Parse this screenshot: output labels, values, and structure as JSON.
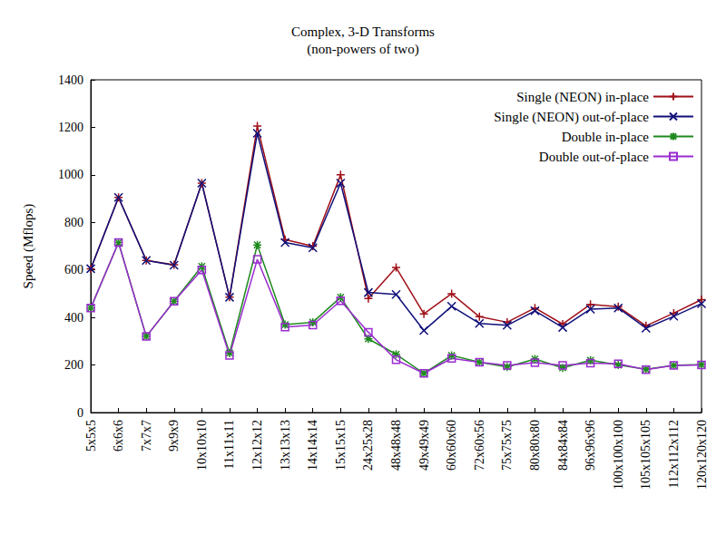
{
  "chart_data": {
    "type": "line",
    "title": "Complex, 3-D Transforms",
    "subtitle": "(non-powers of two)",
    "y_label": "Speed (Mflops)",
    "categories": [
      "5x5x5",
      "6x6x6",
      "7x7x7",
      "9x9x9",
      "10x10x10",
      "11x11x11",
      "12x12x12",
      "13x13x13",
      "14x14x14",
      "15x15x15",
      "24x25x28",
      "48x48x48",
      "49x49x49",
      "60x60x60",
      "72x60x56",
      "75x75x75",
      "80x80x80",
      "84x84x84",
      "96x96x96",
      "100x100x100",
      "105x105x105",
      "112x112x112",
      "120x120x120"
    ],
    "series": [
      {
        "name": "Single (NEON) in-place",
        "color": "#a01018",
        "marker": "plus",
        "values": [
          605,
          905,
          640,
          622,
          965,
          485,
          1205,
          728,
          700,
          1000,
          480,
          610,
          415,
          500,
          403,
          380,
          440,
          372,
          455,
          445,
          365,
          418,
          475
        ]
      },
      {
        "name": "Single (NEON) out-of-place",
        "color": "#10107a",
        "marker": "cross",
        "values": [
          605,
          905,
          640,
          620,
          965,
          485,
          1175,
          715,
          693,
          965,
          505,
          497,
          345,
          447,
          375,
          367,
          428,
          358,
          435,
          440,
          355,
          405,
          458
        ]
      },
      {
        "name": "Double in-place",
        "color": "#1e8a1e",
        "marker": "star",
        "values": [
          440,
          715,
          320,
          468,
          615,
          250,
          705,
          370,
          380,
          485,
          310,
          245,
          165,
          240,
          212,
          192,
          225,
          188,
          220,
          200,
          182,
          198,
          202
        ]
      },
      {
        "name": "Double out-of-place",
        "color": "#9a2cd0",
        "marker": "square",
        "values": [
          440,
          715,
          320,
          468,
          600,
          240,
          645,
          360,
          368,
          470,
          338,
          222,
          165,
          228,
          212,
          198,
          210,
          198,
          208,
          205,
          180,
          198,
          200
        ]
      }
    ],
    "ylim": [
      0,
      1400
    ],
    "yticks": [
      0,
      200,
      400,
      600,
      800,
      1000,
      1200,
      1400
    ],
    "grid": false,
    "legend": "top-right"
  }
}
